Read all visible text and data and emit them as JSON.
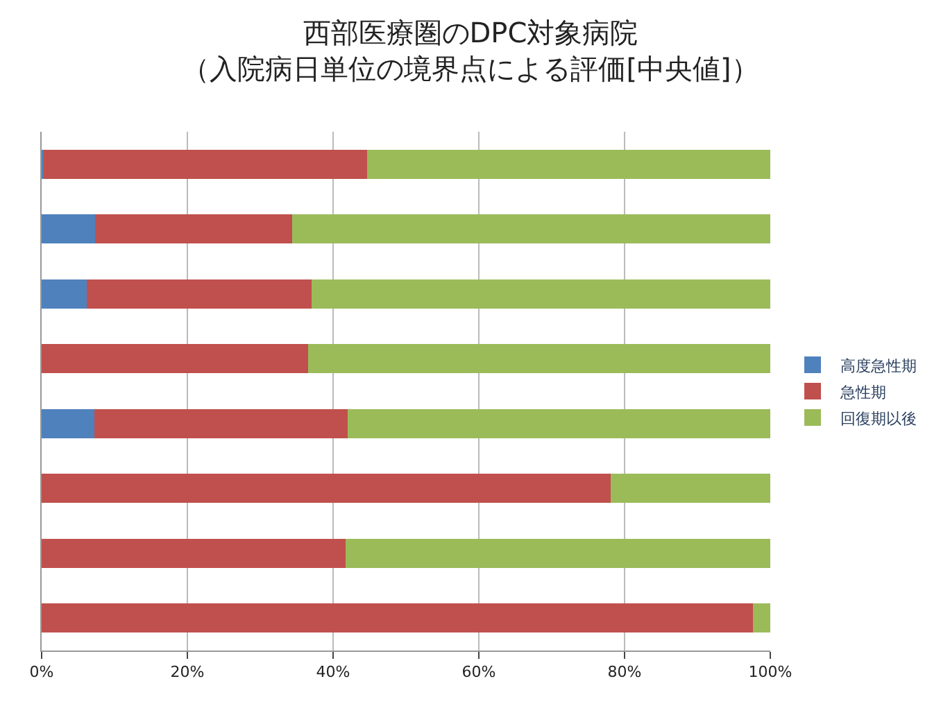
{
  "chart_data": {
    "type": "bar",
    "orientation": "horizontal",
    "stacked": true,
    "title": "西部医療圏のDPC対象病院",
    "subtitle": "（入院病日単位の境界点による評価[中央値]）",
    "categories": [
      null,
      null,
      null,
      null,
      null,
      null,
      null,
      null
    ],
    "series": [
      {
        "name": "高度急性期",
        "color": "#4f81bd",
        "values": [
          0.3,
          7.3,
          6.2,
          0,
          7.2,
          0,
          0,
          0
        ]
      },
      {
        "name": "急性期",
        "color": "#c0504d",
        "values": [
          44.4,
          27.1,
          30.8,
          36.6,
          34.8,
          78.1,
          41.7,
          97.6
        ]
      },
      {
        "name": "回復期以後",
        "color": "#9bbb59",
        "values": [
          55.3,
          65.6,
          63.0,
          63.4,
          58.0,
          21.9,
          58.3,
          2.4
        ]
      }
    ],
    "xlim": [
      0,
      100
    ],
    "xticks": [
      {
        "value": 0,
        "label": "0%"
      },
      {
        "value": 20,
        "label": "20%"
      },
      {
        "value": 40,
        "label": "40%"
      },
      {
        "value": 60,
        "label": "60%"
      },
      {
        "value": 80,
        "label": "80%"
      },
      {
        "value": 100,
        "label": "100%"
      }
    ],
    "grid": "x",
    "legend": "right"
  }
}
